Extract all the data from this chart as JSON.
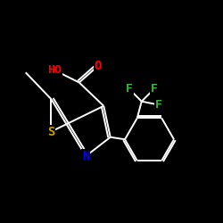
{
  "background_color": "#000000",
  "bond_color": "#ffffff",
  "atom_colors": {
    "S": "#C8A000",
    "N": "#0000FF",
    "O": "#FF0000",
    "F": "#3CB343",
    "HO": "#FF0000"
  },
  "figsize": [
    2.5,
    2.5
  ],
  "dpi": 100,
  "xlim": [
    0,
    10
  ],
  "ylim": [
    0,
    10
  ]
}
